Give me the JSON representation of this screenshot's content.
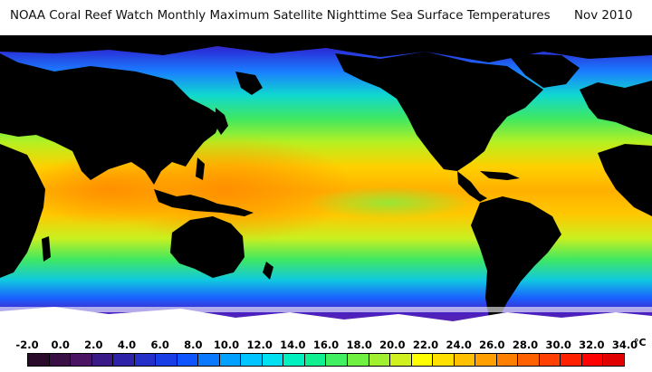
{
  "title": {
    "main": "NOAA Coral Reef Watch Monthly Maximum Satellite Nighttime Sea Surface Temperatures",
    "date": "Nov 2010"
  },
  "map": {
    "projection": "equirectangular",
    "center_longitude": "Pacific-centered",
    "land_color": "#000000",
    "ice_color": "#ffffff"
  },
  "legend": {
    "unit": "°C",
    "ticks": [
      "-2.0",
      "0.0",
      "2.0",
      "4.0",
      "6.0",
      "8.0",
      "10.0",
      "12.0",
      "14.0",
      "16.0",
      "18.0",
      "20.0",
      "22.0",
      "24.0",
      "26.0",
      "28.0",
      "30.0",
      "32.0",
      "34.0"
    ],
    "colors": [
      "#2a0a2a",
      "#3a0f45",
      "#4a1463",
      "#3a1a86",
      "#2e22a8",
      "#2530c8",
      "#1a3ee6",
      "#0f55ff",
      "#0a78ff",
      "#00a0ff",
      "#00c4ff",
      "#00e0f0",
      "#00f0c0",
      "#10f090",
      "#40f060",
      "#70f040",
      "#a0f030",
      "#d0f020",
      "#ffff00",
      "#ffe000",
      "#ffc000",
      "#ffa000",
      "#ff8000",
      "#ff6000",
      "#ff4000",
      "#ff2000",
      "#ff0000",
      "#e00000"
    ]
  }
}
